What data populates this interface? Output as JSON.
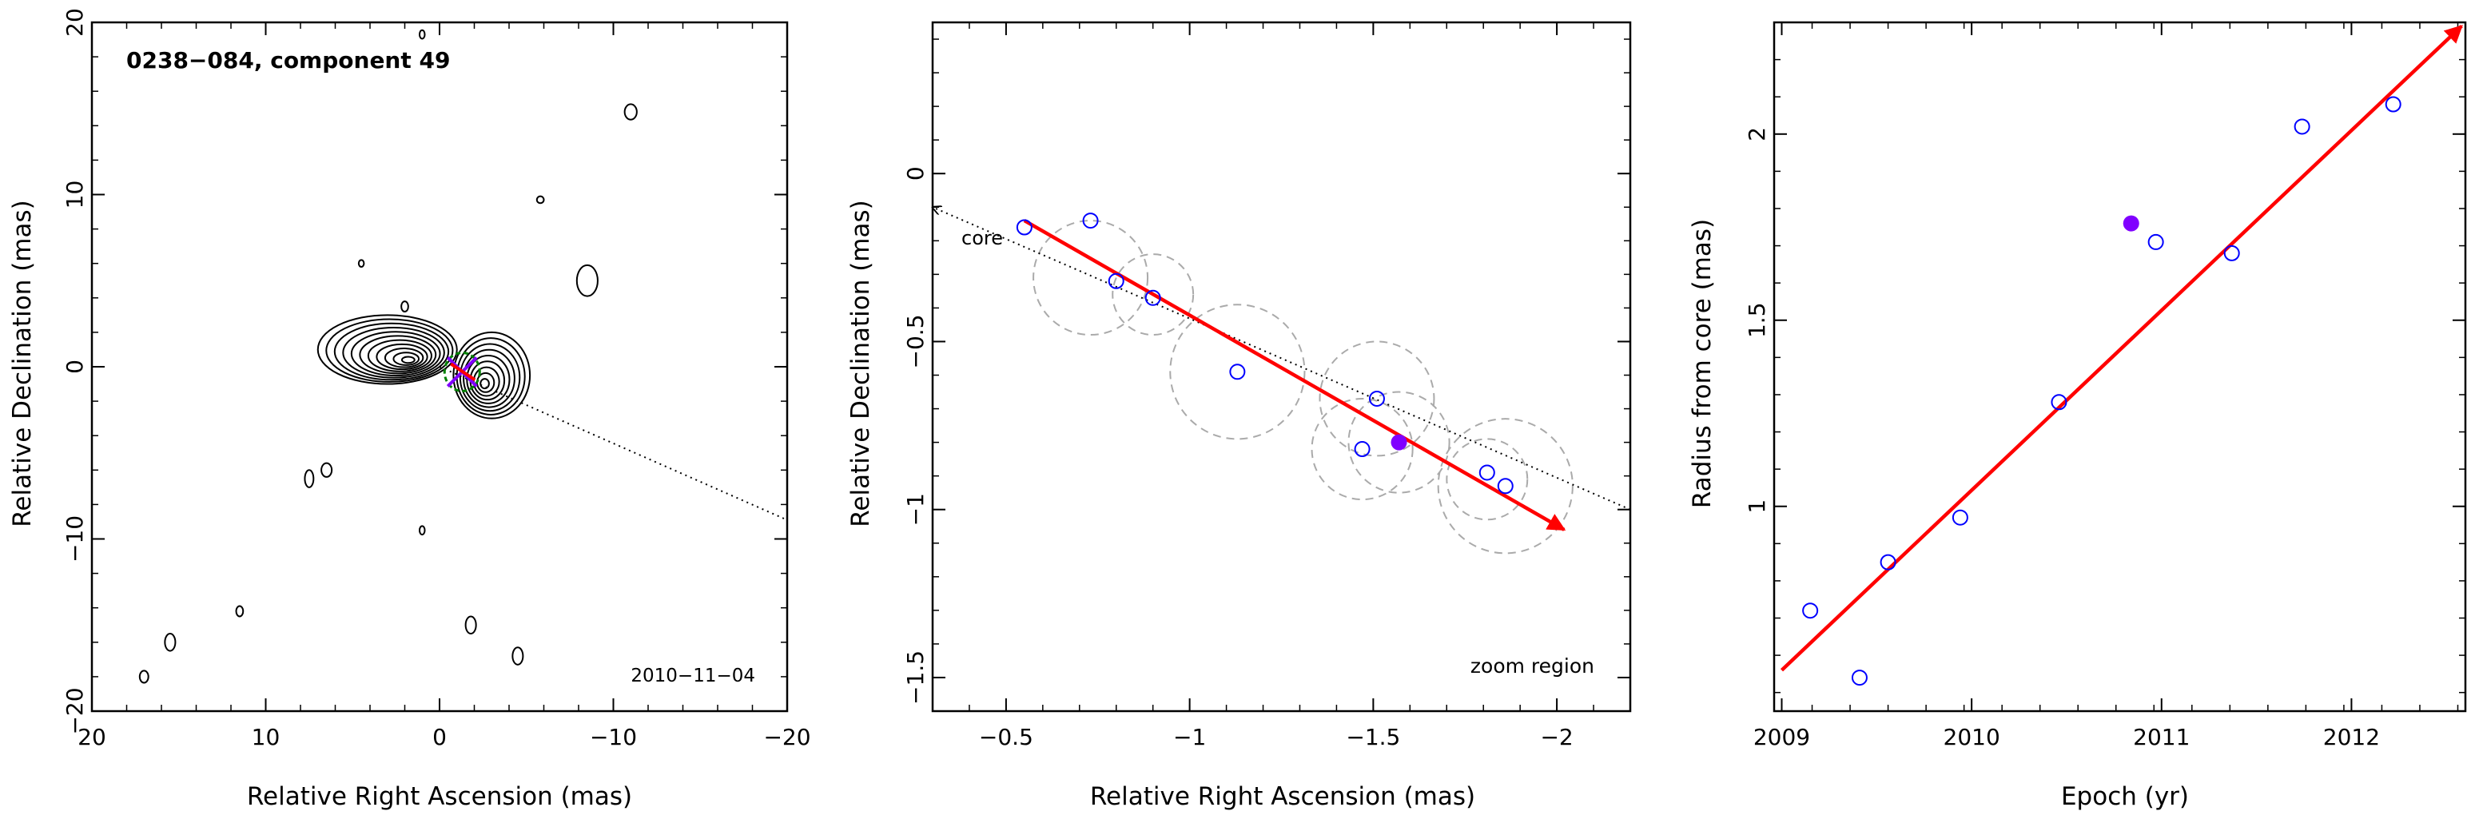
{
  "chart_data": [
    {
      "type": "contour",
      "panel": "left",
      "title": "0238−084, component 49",
      "date_label": "2010−11−04",
      "xlabel": "Relative Right Ascension (mas)",
      "ylabel": "Relative Declination (mas)",
      "xlim": [
        20,
        -20
      ],
      "ylim": [
        -20,
        20
      ],
      "xticks": [
        20,
        10,
        0,
        -10,
        -20
      ],
      "yticks": [
        20,
        10,
        0,
        -10,
        -20
      ],
      "xtick_labels": [
        "20",
        "10",
        "0",
        "−10",
        "−20"
      ],
      "ytick_labels": [
        "20",
        "10",
        "0",
        "−10",
        "−20"
      ],
      "contour_color": "#000000",
      "core_ellipse_color": "#008000",
      "marker_color": "#8000ff",
      "vector_color": "#ff0000",
      "core_direction_line": [
        [
          0,
          0
        ],
        [
          -20,
          -8.9
        ]
      ],
      "contour_sources": [
        {
          "cx": 3.0,
          "cy": 1.0,
          "rx": 4.0,
          "ry": 2.0,
          "levels": 11
        },
        {
          "cx": -3.0,
          "cy": -0.5,
          "rx": 2.2,
          "ry": 2.5,
          "levels": 9
        }
      ],
      "noise_blobs": [
        {
          "x": -11.0,
          "y": 14.8,
          "rx": 0.35,
          "ry": 0.45
        },
        {
          "x": -5.8,
          "y": 9.7,
          "rx": 0.2,
          "ry": 0.2
        },
        {
          "x": -8.5,
          "y": 5.0,
          "rx": 0.6,
          "ry": 0.9
        },
        {
          "x": 4.5,
          "y": 6.0,
          "rx": 0.15,
          "ry": 0.2
        },
        {
          "x": 2.0,
          "y": 3.5,
          "rx": 0.2,
          "ry": 0.3
        },
        {
          "x": 7.5,
          "y": -6.5,
          "rx": 0.25,
          "ry": 0.5
        },
        {
          "x": 6.5,
          "y": -6.0,
          "rx": 0.3,
          "ry": 0.4
        },
        {
          "x": 1.0,
          "y": -9.5,
          "rx": 0.15,
          "ry": 0.25
        },
        {
          "x": 11.5,
          "y": -14.2,
          "rx": 0.2,
          "ry": 0.3
        },
        {
          "x": 15.5,
          "y": -16.0,
          "rx": 0.3,
          "ry": 0.5
        },
        {
          "x": 17.0,
          "y": -18.0,
          "rx": 0.25,
          "ry": 0.35
        },
        {
          "x": -1.8,
          "y": -15.0,
          "rx": 0.3,
          "ry": 0.5
        },
        {
          "x": -4.5,
          "y": -16.8,
          "rx": 0.3,
          "ry": 0.5
        },
        {
          "x": 1.0,
          "y": 19.3,
          "rx": 0.15,
          "ry": 0.25
        }
      ]
    },
    {
      "type": "scatter",
      "panel": "middle",
      "xlabel": "Relative Right Ascension (mas)",
      "ylabel": "Relative Declination (mas)",
      "xlim": [
        -0.3,
        -2.2
      ],
      "ylim": [
        -1.6,
        0.45
      ],
      "xticks": [
        -0.5,
        -1,
        -1.5,
        -2
      ],
      "yticks": [
        0,
        -0.5,
        -1,
        -1.5
      ],
      "xtick_labels": [
        "−0.5",
        "−1",
        "−1.5",
        "−2"
      ],
      "ytick_labels": [
        "0",
        "−0.5",
        "−1",
        "−1.5"
      ],
      "annotations": {
        "core_label": "core",
        "zoom_label": "zoom region"
      },
      "point_color": "#0000ff",
      "highlight_color": "#8000ff",
      "vector_color": "#ff0000",
      "circle_color": "#aaaaaa",
      "points": [
        {
          "x": -0.55,
          "y": -0.16
        },
        {
          "x": -0.73,
          "y": -0.14
        },
        {
          "x": -0.8,
          "y": -0.32
        },
        {
          "x": -0.9,
          "y": -0.37
        },
        {
          "x": -1.13,
          "y": -0.59
        },
        {
          "x": -1.51,
          "y": -0.67
        },
        {
          "x": -1.47,
          "y": -0.82
        },
        {
          "x": -1.81,
          "y": -0.89
        },
        {
          "x": -1.86,
          "y": -0.93
        }
      ],
      "highlight_point": {
        "x": -1.57,
        "y": -0.8
      },
      "beam_circles": [
        {
          "x": -0.73,
          "y": -0.31,
          "r": 0.17
        },
        {
          "x": -0.9,
          "y": -0.36,
          "r": 0.12
        },
        {
          "x": -1.13,
          "y": -0.59,
          "r": 0.2
        },
        {
          "x": -1.51,
          "y": -0.67,
          "r": 0.17
        },
        {
          "x": -1.47,
          "y": -0.82,
          "r": 0.15
        },
        {
          "x": -1.57,
          "y": -0.8,
          "r": 0.15
        },
        {
          "x": -1.81,
          "y": -0.91,
          "r": 0.12
        },
        {
          "x": -1.86,
          "y": -0.93,
          "r": 0.2
        }
      ],
      "vector": {
        "from": [
          -0.55,
          -0.14
        ],
        "to": [
          -2.02,
          -1.06
        ]
      },
      "core_line": {
        "from": [
          -2.2,
          -1.0
        ],
        "to": [
          -0.3,
          -0.1
        ]
      }
    },
    {
      "type": "scatter",
      "panel": "right",
      "xlabel": "Epoch (yr)",
      "ylabel": "Radius from core (mas)",
      "xlim": [
        2008.96,
        2012.6
      ],
      "ylim": [
        0.45,
        2.3
      ],
      "xticks": [
        2009,
        2010,
        2011,
        2012
      ],
      "yticks": [
        1,
        1.5,
        2
      ],
      "xtick_labels": [
        "2009",
        "2010",
        "2011",
        "2012"
      ],
      "ytick_labels": [
        "1",
        "1.5",
        "2"
      ],
      "point_color": "#0000ff",
      "highlight_color": "#8000ff",
      "vector_color": "#ff0000",
      "points": [
        {
          "x": 2009.15,
          "y": 0.72
        },
        {
          "x": 2009.41,
          "y": 0.54
        },
        {
          "x": 2009.56,
          "y": 0.85
        },
        {
          "x": 2009.94,
          "y": 0.97
        },
        {
          "x": 2010.46,
          "y": 1.28
        },
        {
          "x": 2010.97,
          "y": 1.71
        },
        {
          "x": 2011.37,
          "y": 1.68
        },
        {
          "x": 2011.74,
          "y": 2.02
        },
        {
          "x": 2012.22,
          "y": 2.08
        }
      ],
      "highlight_point": {
        "x": 2010.84,
        "y": 1.76
      },
      "trend_line": {
        "from": [
          2009.0,
          0.56
        ],
        "to": [
          2012.58,
          2.29
        ]
      }
    }
  ]
}
